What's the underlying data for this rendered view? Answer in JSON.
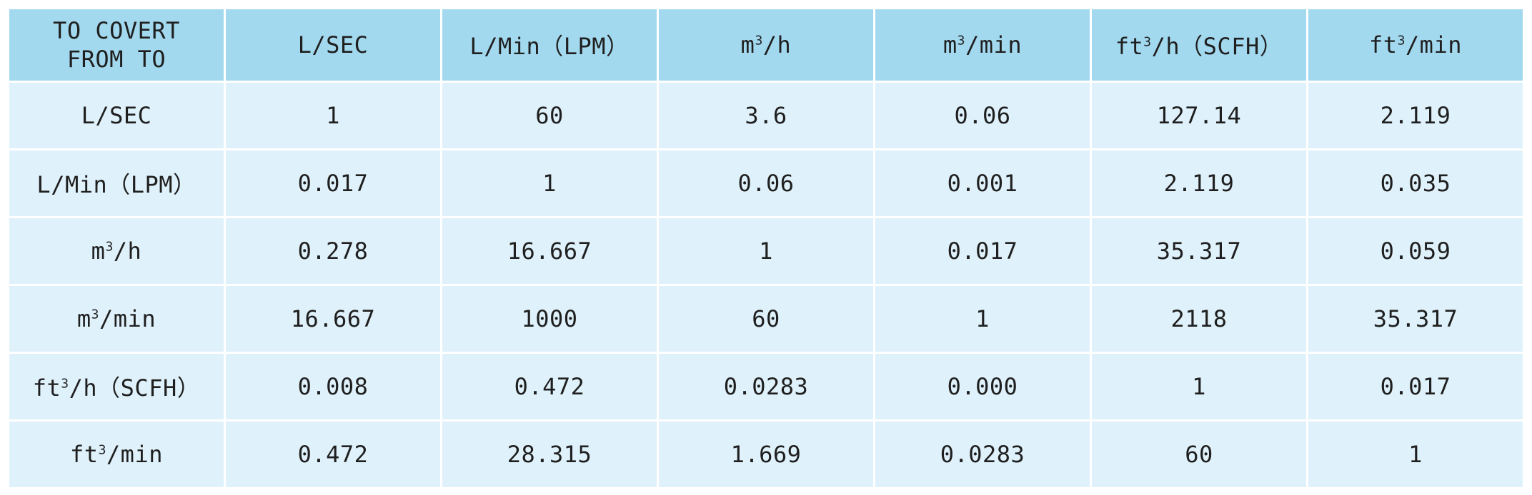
{
  "table": {
    "corner": {
      "line1": "TO COVERT",
      "line2": "FROM TO"
    },
    "headers": [
      {
        "base": "L/SEC",
        "sup": "",
        "rest": ""
      },
      {
        "base": "L/Min（LPM）",
        "sup": "",
        "rest": ""
      },
      {
        "base": "m",
        "sup": "3",
        "rest": "/h"
      },
      {
        "base": "m",
        "sup": "3",
        "rest": "/min"
      },
      {
        "base": "ft",
        "sup": "3",
        "rest": "/h（SCFH）"
      },
      {
        "base": "ft",
        "sup": "3",
        "rest": "/min"
      }
    ],
    "rows": [
      {
        "label": {
          "base": "L/SEC",
          "sup": "",
          "rest": ""
        },
        "cells": [
          "1",
          "60",
          "3.6",
          "0.06",
          "127.14",
          "2.119"
        ]
      },
      {
        "label": {
          "base": "L/Min（LPM）",
          "sup": "",
          "rest": ""
        },
        "cells": [
          "0.017",
          "1",
          "0.06",
          "0.001",
          "2.119",
          "0.035"
        ]
      },
      {
        "label": {
          "base": "m",
          "sup": "3",
          "rest": "/h"
        },
        "cells": [
          "0.278",
          "16.667",
          "1",
          "0.017",
          "35.317",
          "0.059"
        ]
      },
      {
        "label": {
          "base": "m",
          "sup": "3",
          "rest": "/min"
        },
        "cells": [
          "16.667",
          "1000",
          "60",
          "1",
          "2118",
          "35.317"
        ]
      },
      {
        "label": {
          "base": "ft",
          "sup": "3",
          "rest": "/h（SCFH）"
        },
        "cells": [
          "0.008",
          "0.472",
          "0.0283",
          "0.000",
          "1",
          "0.017"
        ]
      },
      {
        "label": {
          "base": "ft",
          "sup": "3",
          "rest": "/min"
        },
        "cells": [
          "0.472",
          "28.315",
          "1.669",
          "0.0283",
          "60",
          "1"
        ]
      }
    ],
    "colors": {
      "header_bg": "#a3d9ef",
      "body_bg": "#dff1fa",
      "border": "#ffffff",
      "text": "#1f1f1f"
    }
  }
}
